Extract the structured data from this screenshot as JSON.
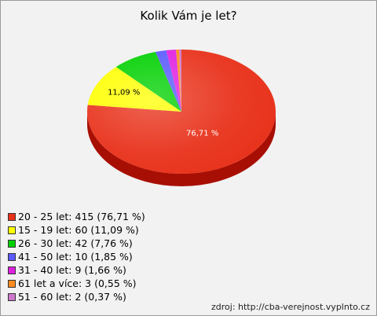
{
  "chart_data": {
    "type": "pie",
    "title": "Kolik Vám je let?",
    "slices": [
      {
        "label": "20 - 25 let",
        "value": 415,
        "percent": "76,71 %",
        "legend": "20 - 25 let: 415 (76,71 %)",
        "color": "#e8311a",
        "side": "#a80f04"
      },
      {
        "label": "15 - 19 let",
        "value": 60,
        "percent": "11,09 %",
        "legend": "15 - 19 let: 60 (11,09 %)",
        "color": "#ffff00",
        "side": "#c4c400"
      },
      {
        "label": "26 - 30 let",
        "value": 42,
        "percent": "",
        "legend": "26 - 30 let: 42 (7,76 %)",
        "color": "#00d000",
        "side": "#009000"
      },
      {
        "label": "41 - 50 let",
        "value": 10,
        "percent": "",
        "legend": "41 - 50 let: 10 (1,85 %)",
        "color": "#5a5aff",
        "side": "#3030b0"
      },
      {
        "label": "31 - 40 let",
        "value": 9,
        "percent": "",
        "legend": "31 - 40 let: 9 (1,66 %)",
        "color": "#e020e0",
        "side": "#9a109a"
      },
      {
        "label": "61 let a více",
        "value": 3,
        "percent": "",
        "legend": "61 let a více: 3 (0,55 %)",
        "color": "#ff8c20",
        "side": "#b05a10"
      },
      {
        "label": "51 - 60 let",
        "value": 2,
        "percent": "",
        "legend": "51 - 60 let: 2 (0,37 %)",
        "color": "#cc77cc",
        "side": "#8a4a8a"
      }
    ]
  },
  "source": "zdroj: http://cba-verejnost.vyplnto.cz"
}
